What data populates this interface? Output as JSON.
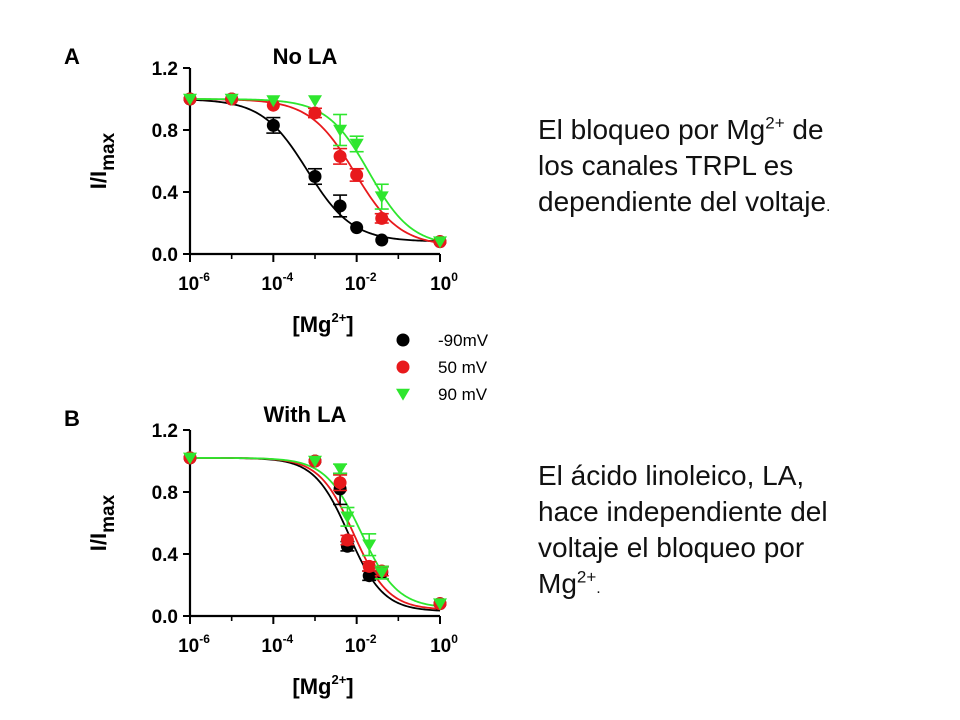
{
  "text": {
    "block1": {
      "line1_pre": "El bloqueo por Mg",
      "line1_sup": "2+",
      "line1_post": " de",
      "line2": "los canales TRPL es",
      "line3": "dependiente del voltaje",
      "line3_end": "."
    },
    "block2": {
      "line1": "El ácido linoleico, LA,",
      "line2": "hace independiente del",
      "line3": "voltaje el bloqueo por",
      "line4_pre": "Mg",
      "line4_sup": "2+",
      "line4_end": "."
    }
  },
  "legend": {
    "entries": [
      {
        "label": "-90mV",
        "color": "#000000",
        "marker": "circle"
      },
      {
        "label": "50 mV",
        "color": "#e8191c",
        "marker": "circle"
      },
      {
        "label": "90 mV",
        "color": "#2ee62e",
        "marker": "triangle-down"
      }
    ]
  },
  "chart_data": [
    {
      "type": "scatter",
      "panel": "A",
      "title": "No LA",
      "xlabel_base": "[Mg",
      "xlabel_sup": "2+",
      "xlabel_end": "]",
      "ylabel_base": "I/I",
      "ylabel_sub": "max",
      "x_scale": "log",
      "xlim_exp": [
        -6,
        0
      ],
      "ylim": [
        0.0,
        1.2
      ],
      "x_ticks": [
        {
          "base": "10",
          "exp": "-6"
        },
        {
          "base": "10",
          "exp": "-4"
        },
        {
          "base": "10",
          "exp": "-2"
        },
        {
          "base": "10",
          "exp": "0"
        }
      ],
      "y_ticks": [
        "0.0",
        "0.4",
        "0.8",
        "1.2"
      ],
      "series": [
        {
          "name": "-90mV",
          "color": "#000000",
          "marker": "circle",
          "x": [
            1e-06,
            1e-05,
            0.0001,
            0.001,
            0.004,
            0.01,
            0.04,
            1
          ],
          "y": [
            1.0,
            1.0,
            0.83,
            0.5,
            0.31,
            0.17,
            0.09,
            0.08
          ],
          "err": [
            0.02,
            0.02,
            0.05,
            0.05,
            0.07,
            0.02,
            0.02,
            0.02
          ],
          "fit": {
            "ic50": 0.00065,
            "hill": 0.8,
            "top": 1.0,
            "bottom": 0.08
          }
        },
        {
          "name": "50 mV",
          "color": "#e8191c",
          "marker": "circle",
          "x": [
            1e-06,
            1e-05,
            0.0001,
            0.001,
            0.004,
            0.01,
            0.04,
            1
          ],
          "y": [
            1.0,
            1.0,
            0.96,
            0.91,
            0.63,
            0.51,
            0.23,
            0.08
          ],
          "err": [
            0.02,
            0.02,
            0.02,
            0.03,
            0.05,
            0.04,
            0.03,
            0.02
          ],
          "fit": {
            "ic50": 0.009,
            "hill": 0.8,
            "top": 1.0,
            "bottom": 0.05
          }
        },
        {
          "name": "90 mV",
          "color": "#2ee62e",
          "marker": "triangle-down",
          "x": [
            1e-06,
            1e-05,
            0.0001,
            0.001,
            0.004,
            0.01,
            0.04,
            1
          ],
          "y": [
            1.0,
            1.0,
            0.99,
            0.99,
            0.8,
            0.71,
            0.37,
            0.08
          ],
          "err": [
            0.02,
            0.02,
            0.02,
            0.02,
            0.1,
            0.05,
            0.08,
            0.02
          ],
          "fit": {
            "ic50": 0.02,
            "hill": 0.85,
            "top": 1.0,
            "bottom": 0.05
          }
        }
      ]
    },
    {
      "type": "scatter",
      "panel": "B",
      "title": "With LA",
      "xlabel_base": "[Mg",
      "xlabel_sup": "2+",
      "xlabel_end": "]",
      "ylabel_base": "I/I",
      "ylabel_sub": "max",
      "x_scale": "log",
      "xlim_exp": [
        -6,
        0
      ],
      "ylim": [
        0.0,
        1.2
      ],
      "x_ticks": [
        {
          "base": "10",
          "exp": "-6"
        },
        {
          "base": "10",
          "exp": "-4"
        },
        {
          "base": "10",
          "exp": "-2"
        },
        {
          "base": "10",
          "exp": "0"
        }
      ],
      "y_ticks": [
        "0.0",
        "0.4",
        "0.8",
        "1.2"
      ],
      "series": [
        {
          "name": "-90mV",
          "color": "#000000",
          "marker": "circle",
          "x": [
            1e-06,
            0.001,
            0.004,
            0.006,
            0.02,
            0.04,
            1
          ],
          "y": [
            1.02,
            1.0,
            0.82,
            0.45,
            0.26,
            0.28,
            0.08
          ],
          "err": [
            0.02,
            0.02,
            0.1,
            0.03,
            0.03,
            0.04,
            0.02
          ],
          "fit": {
            "ic50": 0.0065,
            "hill": 1.05,
            "top": 1.02,
            "bottom": 0.03
          }
        },
        {
          "name": "50 mV",
          "color": "#e8191c",
          "marker": "circle",
          "x": [
            1e-06,
            0.001,
            0.004,
            0.006,
            0.02,
            0.04,
            1
          ],
          "y": [
            1.02,
            1.0,
            0.86,
            0.49,
            0.32,
            0.29,
            0.08
          ],
          "err": [
            0.02,
            0.02,
            0.05,
            0.03,
            0.03,
            0.03,
            0.02
          ],
          "fit": {
            "ic50": 0.0085,
            "hill": 1.05,
            "top": 1.02,
            "bottom": 0.04
          }
        },
        {
          "name": "90 mV",
          "color": "#2ee62e",
          "marker": "triangle-down",
          "x": [
            1e-06,
            0.001,
            0.004,
            0.006,
            0.02,
            0.04,
            1
          ],
          "y": [
            1.02,
            1.0,
            0.95,
            0.64,
            0.46,
            0.28,
            0.08
          ],
          "err": [
            0.02,
            0.02,
            0.03,
            0.06,
            0.07,
            0.04,
            0.02
          ],
          "fit": {
            "ic50": 0.013,
            "hill": 1.0,
            "top": 1.02,
            "bottom": 0.05
          }
        }
      ]
    }
  ]
}
